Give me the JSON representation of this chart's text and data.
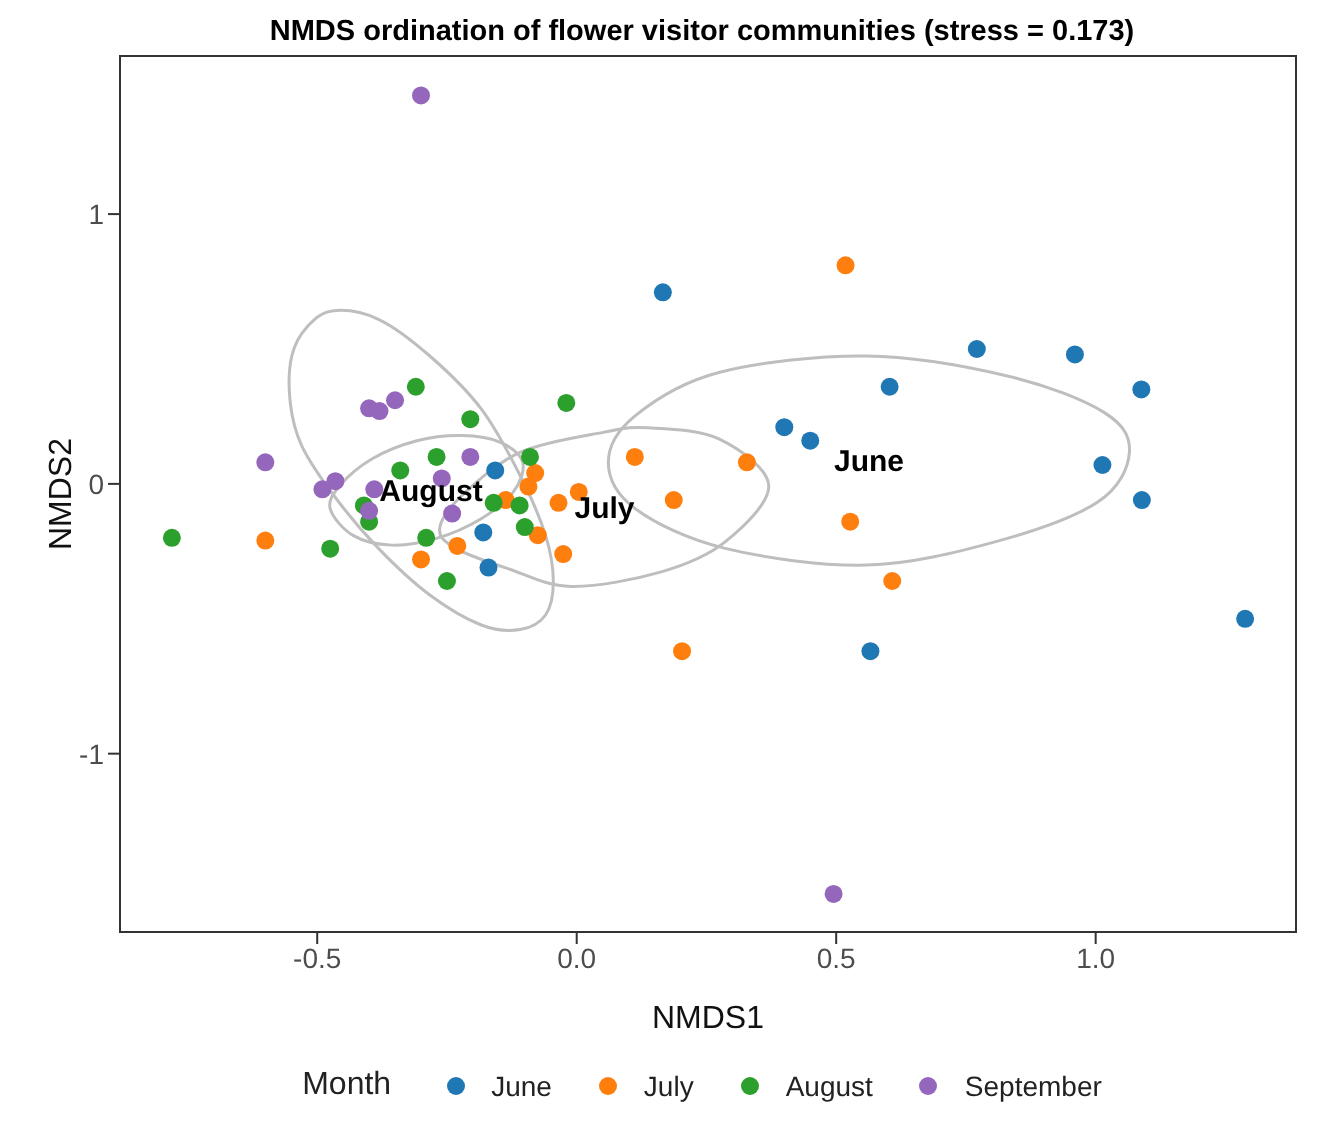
{
  "chart_data": {
    "type": "scatter",
    "title": "NMDS ordination of flower visitor communities (stress = 0.173)",
    "xlabel": "NMDS1",
    "ylabel": "NMDS2",
    "legend_title": "Month",
    "legend": "bottom",
    "grid": false,
    "marker": "circle",
    "xlim": [
      -0.88,
      1.386
    ],
    "ylim": [
      -1.661,
      1.586
    ],
    "xticks": [
      -0.5,
      {
        "value": 0,
        "label": "0.0"
      },
      0.5,
      {
        "value": 1,
        "label": "1.0"
      }
    ],
    "yticks": [
      -1,
      0,
      1
    ],
    "annotations": [
      "June",
      "July",
      "August"
    ],
    "series": [
      {
        "name": "June",
        "color": "#1f77b4",
        "x": [
          0.166,
          0.771,
          0.96,
          1.088,
          0.603,
          0.4,
          0.45,
          1.013,
          1.089,
          1.288,
          0.566,
          -0.157,
          -0.18,
          -0.17
        ],
        "values": [
          0.71,
          0.5,
          0.48,
          0.35,
          0.36,
          0.21,
          0.16,
          0.07,
          -0.06,
          -0.5,
          -0.62,
          0.05,
          -0.18,
          -0.31
        ]
      },
      {
        "name": "July",
        "color": "#ff7f0e",
        "x": [
          0.518,
          0.112,
          0.328,
          0.187,
          0.527,
          0.608,
          0.203,
          -0.035,
          0.004,
          -0.026,
          -0.6,
          -0.08,
          -0.093,
          -0.137,
          -0.075,
          -0.23,
          -0.3
        ],
        "values": [
          0.81,
          0.1,
          0.08,
          -0.06,
          -0.14,
          -0.36,
          -0.62,
          -0.07,
          -0.03,
          -0.26,
          -0.21,
          0.04,
          -0.01,
          -0.06,
          -0.19,
          -0.23,
          -0.28
        ]
      },
      {
        "name": "August",
        "color": "#2ca02c",
        "x": [
          -0.78,
          -0.475,
          -0.31,
          -0.205,
          -0.02,
          -0.27,
          -0.34,
          -0.09,
          -0.41,
          -0.4,
          -0.29,
          -0.25,
          -0.16,
          -0.11,
          -0.1
        ],
        "values": [
          -0.2,
          -0.24,
          0.36,
          0.24,
          0.3,
          0.1,
          0.05,
          0.1,
          -0.08,
          -0.14,
          -0.2,
          -0.36,
          -0.07,
          -0.08,
          -0.16
        ]
      },
      {
        "name": "September",
        "color": "#9467bd",
        "x": [
          -0.6,
          -0.49,
          -0.465,
          -0.4,
          -0.38,
          -0.35,
          -0.205,
          -0.26,
          -0.39,
          -0.4,
          -0.24,
          -0.3,
          0.495
        ],
        "values": [
          0.08,
          -0.02,
          0.01,
          0.28,
          0.27,
          0.31,
          0.1,
          0.02,
          -0.02,
          -0.1,
          -0.11,
          1.44,
          -1.52
        ]
      }
    ]
  }
}
